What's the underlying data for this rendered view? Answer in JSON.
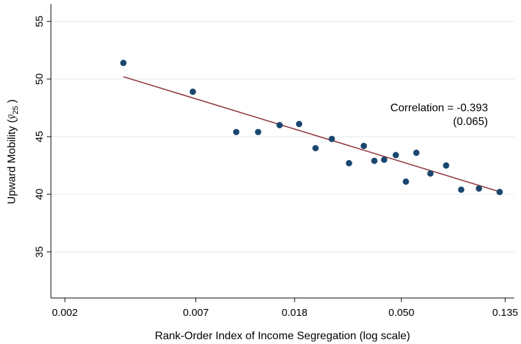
{
  "chart_data": {
    "type": "scatter",
    "x_scale": "log",
    "xlabel": "Rank-Order Index of Income Segregation (log scale)",
    "ylabel": {
      "main": "Upward Mobility (",
      "symbol": "ȳ",
      "subscript": "25",
      "close": " )"
    },
    "x_ticks": [
      {
        "value": 0.002,
        "label": "0.002"
      },
      {
        "value": 0.007,
        "label": "0.007"
      },
      {
        "value": 0.018,
        "label": "0.018"
      },
      {
        "value": 0.05,
        "label": "0.050"
      },
      {
        "value": 0.135,
        "label": "0.135"
      }
    ],
    "y_ticks": [
      {
        "value": 35,
        "label": "35"
      },
      {
        "value": 40,
        "label": "40"
      },
      {
        "value": 45,
        "label": "45"
      },
      {
        "value": 50,
        "label": "50"
      },
      {
        "value": 55,
        "label": "55"
      }
    ],
    "xlim": [
      0.00175,
      0.147
    ],
    "ylim": [
      31.0,
      56.5
    ],
    "grid": true,
    "points": [
      {
        "x": 0.0035,
        "y": 51.4
      },
      {
        "x": 0.0068,
        "y": 48.9
      },
      {
        "x": 0.0103,
        "y": 45.4
      },
      {
        "x": 0.0127,
        "y": 45.4
      },
      {
        "x": 0.0156,
        "y": 46.0
      },
      {
        "x": 0.0188,
        "y": 46.1
      },
      {
        "x": 0.022,
        "y": 44.0
      },
      {
        "x": 0.0257,
        "y": 44.8
      },
      {
        "x": 0.0303,
        "y": 42.7
      },
      {
        "x": 0.0349,
        "y": 44.2
      },
      {
        "x": 0.0386,
        "y": 42.9
      },
      {
        "x": 0.0424,
        "y": 43.0
      },
      {
        "x": 0.0474,
        "y": 43.4
      },
      {
        "x": 0.0522,
        "y": 41.1
      },
      {
        "x": 0.0577,
        "y": 43.6
      },
      {
        "x": 0.066,
        "y": 41.8
      },
      {
        "x": 0.0767,
        "y": 42.5
      },
      {
        "x": 0.0886,
        "y": 40.4
      },
      {
        "x": 0.105,
        "y": 40.5
      },
      {
        "x": 0.128,
        "y": 40.2
      }
    ],
    "fit_line": {
      "x": [
        0.0035,
        0.129
      ],
      "y": [
        50.2,
        40.2
      ]
    },
    "annotation": {
      "line1": "Correlation = -0.393",
      "line2": "(0.065)"
    },
    "colors": {
      "point": "#1a476f",
      "fit_line": "#90353b",
      "grid": "#e6eef1",
      "axis": "#000000"
    }
  }
}
